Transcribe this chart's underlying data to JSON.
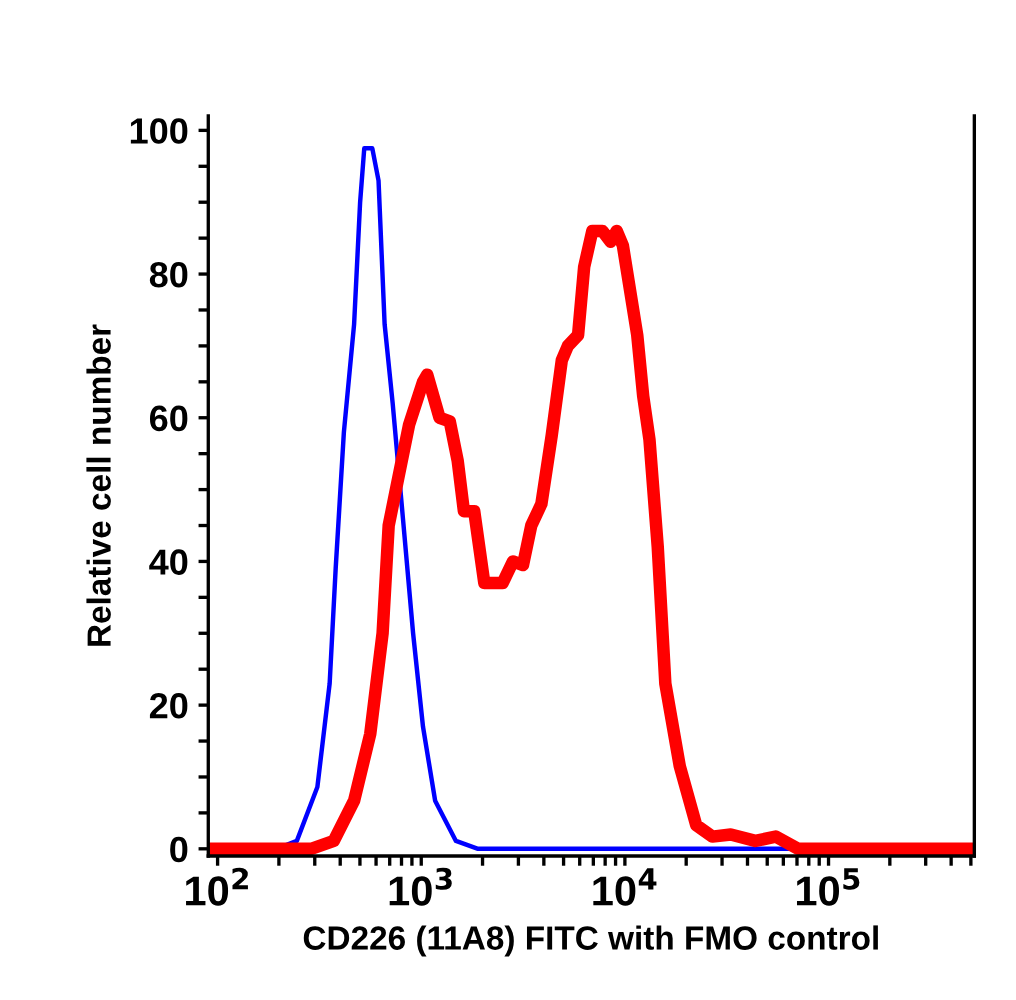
{
  "chart_data": {
    "type": "line",
    "xlabel": "CD226 (11A8) FITC with FMO control",
    "ylabel": "Relative cell number",
    "log": "x",
    "xlim": [
      90,
      520000
    ],
    "ylim": [
      -1,
      102
    ],
    "xticks": [
      {
        "value": 100,
        "label": "10$^{2}$"
      },
      {
        "value": 200,
        "label": null
      },
      {
        "value": 300,
        "label": null
      },
      {
        "value": 400,
        "label": null
      },
      {
        "value": 500,
        "label": null
      },
      {
        "value": 600,
        "label": null
      },
      {
        "value": 700,
        "label": null
      },
      {
        "value": 800,
        "label": null
      },
      {
        "value": 900,
        "label": null
      },
      {
        "value": 1000,
        "label": "10$^{3}$"
      },
      {
        "value": 2000,
        "label": null
      },
      {
        "value": 3000,
        "label": null
      },
      {
        "value": 4000,
        "label": null
      },
      {
        "value": 5000,
        "label": null
      },
      {
        "value": 6000,
        "label": null
      },
      {
        "value": 7000,
        "label": null
      },
      {
        "value": 8000,
        "label": null
      },
      {
        "value": 9000,
        "label": null
      },
      {
        "value": 10000,
        "label": "10$^{4}$"
      },
      {
        "value": 20000,
        "label": null
      },
      {
        "value": 30000,
        "label": null
      },
      {
        "value": 40000,
        "label": null
      },
      {
        "value": 50000,
        "label": null
      },
      {
        "value": 60000,
        "label": null
      },
      {
        "value": 70000,
        "label": null
      },
      {
        "value": 80000,
        "label": null
      },
      {
        "value": 90000,
        "label": null
      },
      {
        "value": 100000,
        "label": "10$^{5}$"
      },
      {
        "value": 200000,
        "label": null
      },
      {
        "value": 300000,
        "label": null
      },
      {
        "value": 400000,
        "label": null
      },
      {
        "value": 500000,
        "label": null
      }
    ],
    "yticks": [
      0,
      {
        "value": 5,
        "label": null
      },
      {
        "value": 10,
        "label": null
      },
      {
        "value": 15,
        "label": null
      },
      20,
      {
        "value": 25,
        "label": null
      },
      {
        "value": 30,
        "label": null
      },
      {
        "value": 35,
        "label": null
      },
      40,
      {
        "value": 45,
        "label": null
      },
      {
        "value": 50,
        "label": null
      },
      {
        "value": 55,
        "label": null
      },
      60,
      {
        "value": 65,
        "label": null
      },
      {
        "value": 70,
        "label": null
      },
      {
        "value": 75,
        "label": null
      },
      80,
      {
        "value": 85,
        "label": null
      },
      {
        "value": 90,
        "label": null
      },
      {
        "value": 95,
        "label": null
      },
      100
    ],
    "grid": false,
    "marker": "none",
    "line_style": "solid",
    "series": [
      {
        "color": "#0000ff",
        "x": [
          90,
          195,
          245,
          309,
          355,
          380,
          417,
          468,
          501,
          525,
          575,
          617,
          661,
          724,
          813,
          912,
          1020,
          1170,
          1480,
          1900,
          500000
        ],
        "values": [
          0,
          0,
          1.1,
          8.6,
          23,
          39,
          58,
          73,
          90,
          97.5,
          97.5,
          93,
          73,
          62,
          46,
          30,
          17,
          6.7,
          1.1,
          0,
          0
        ]
      },
      {
        "color": "#ff0000",
        "x": [
          90,
          288,
          372,
          468,
          562,
          646,
          692,
          776,
          871,
          1020,
          1070,
          1230,
          1380,
          1510,
          1620,
          1820,
          2040,
          2510,
          2820,
          3160,
          3470,
          3890,
          4370,
          4900,
          5250,
          5890,
          6310,
          6920,
          7760,
          8510,
          9120,
          9770,
          11500,
          12300,
          13200,
          14500,
          15800,
          18600,
          22400,
          26900,
          33100,
          43700,
          55000,
          70800,
          100000,
          500000
        ],
        "values": [
          0,
          0,
          1.1,
          6.7,
          16,
          30,
          45,
          52,
          59,
          65,
          66,
          60,
          59.5,
          54,
          47,
          47,
          37,
          37,
          40,
          39.5,
          45,
          48,
          57.5,
          68,
          70,
          71.5,
          81,
          86,
          86,
          84.5,
          86,
          84,
          71.5,
          63,
          57,
          42,
          23,
          11.5,
          3.3,
          1.7,
          2,
          1.1,
          1.7,
          0,
          0,
          0
        ]
      }
    ]
  }
}
